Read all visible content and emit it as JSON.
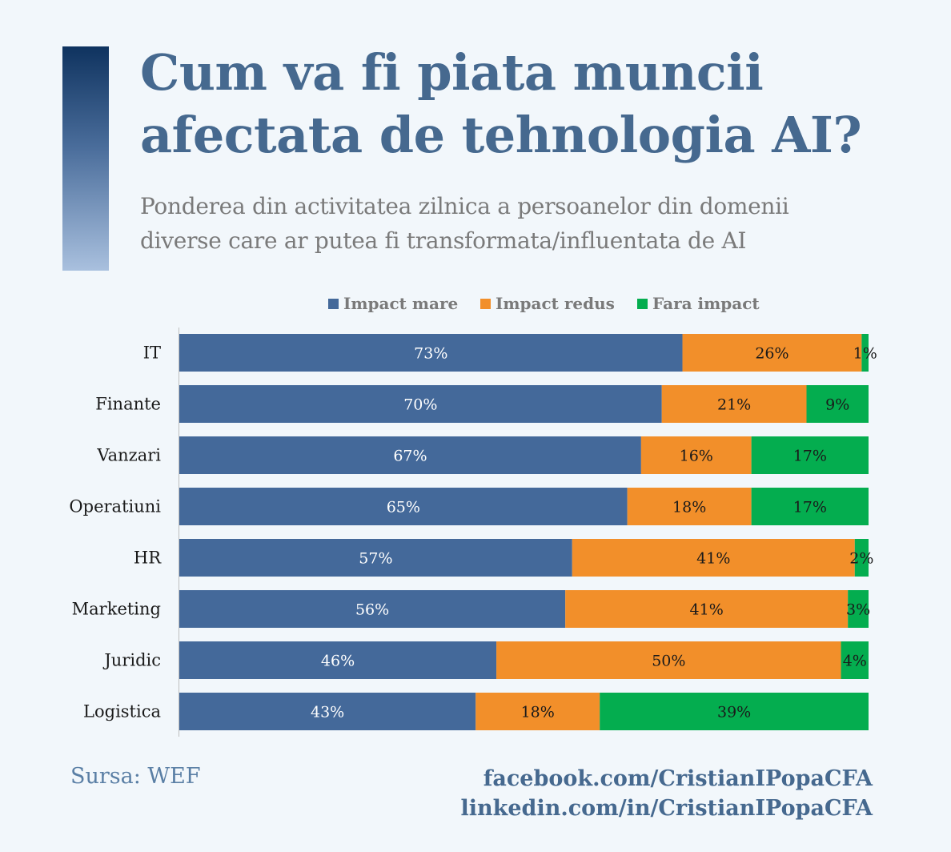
{
  "header": {
    "title_line1": "Cum va fi piata muncii",
    "title_line2": "afectata de tehnologia AI?",
    "subtitle_line1": "Ponderea din activitatea zilnica a persoanelor din domenii",
    "subtitle_line2": "diverse care ar putea fi transformata/influentata de AI"
  },
  "colors": {
    "impact_mare": "#44699a",
    "impact_redus": "#f28f2a",
    "fara_impact": "#04ad4f"
  },
  "chart_data": {
    "type": "bar",
    "orientation": "horizontal",
    "stacked": true,
    "categories": [
      "IT",
      "Finante",
      "Vanzari",
      "Operatiuni",
      "HR",
      "Marketing",
      "Juridic",
      "Logistica"
    ],
    "series": [
      {
        "name": "Impact mare",
        "values": [
          73,
          70,
          67,
          65,
          57,
          56,
          46,
          43
        ]
      },
      {
        "name": "Impact redus",
        "values": [
          26,
          21,
          16,
          18,
          41,
          41,
          50,
          18
        ]
      },
      {
        "name": "Fara impact",
        "values": [
          1,
          9,
          17,
          17,
          2,
          3,
          4,
          39
        ]
      }
    ],
    "value_suffix": "%",
    "xlim": [
      0,
      100
    ],
    "legend_position": "top",
    "title": "",
    "xlabel": "",
    "ylabel": ""
  },
  "footer": {
    "source": "Sursa: WEF",
    "facebook": "facebook.com/CristianIPopaCFA",
    "linkedin": "linkedin.com/in/CristianIPopaCFA"
  }
}
